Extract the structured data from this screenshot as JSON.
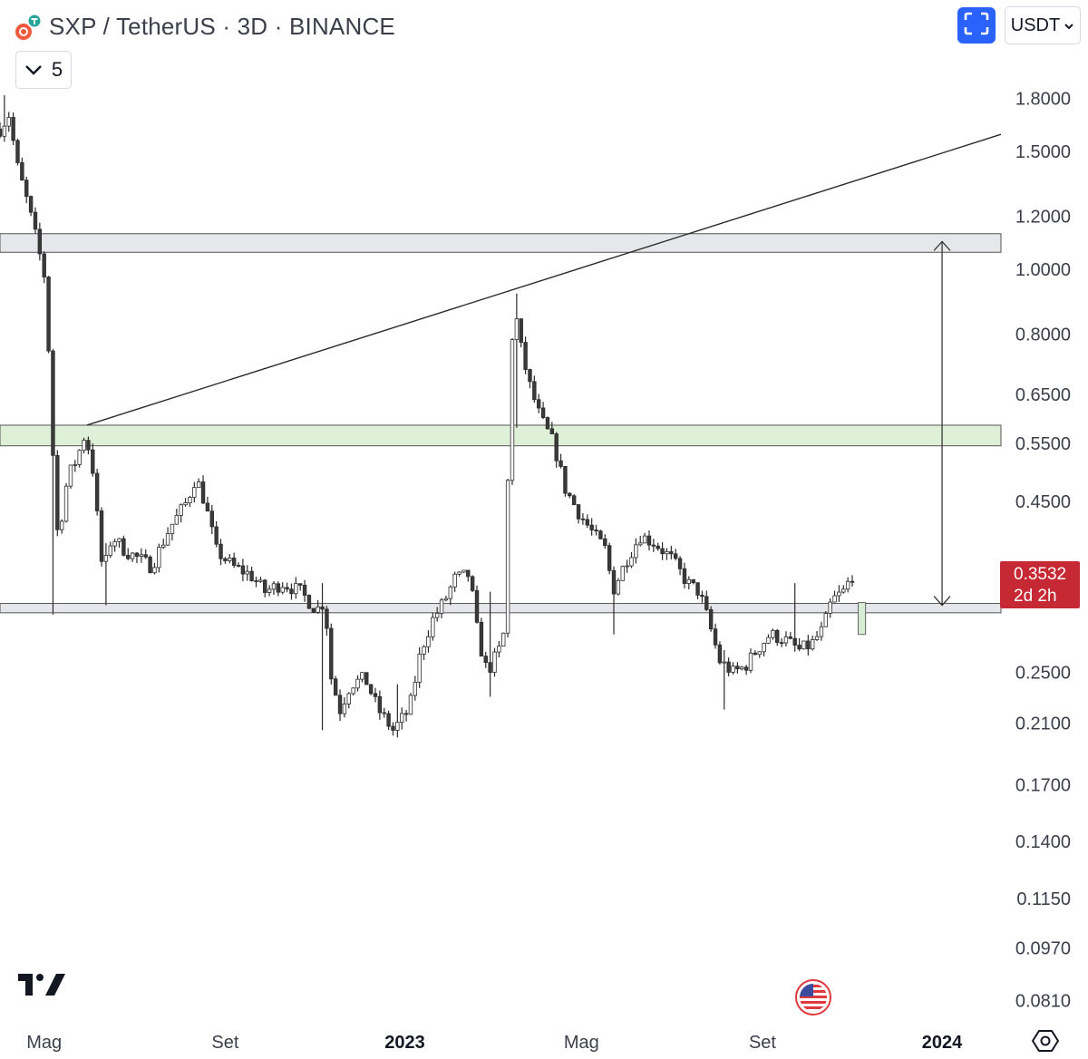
{
  "header": {
    "symbol": "SXP",
    "title": "SXP / TetherUS · 3D · BINANCE",
    "indicator_count": "5"
  },
  "toolbar": {
    "currency": "USDT"
  },
  "price_label": {
    "price": "0.3532",
    "countdown": "2d 2h"
  },
  "colors": {
    "up": "#26a69a",
    "down": "#ef5350",
    "candle_body_up": "#ffffff",
    "candle_body_down": "#3a3a3a",
    "price_tag": "#c62834",
    "accent": "#2962ff"
  },
  "icons": [
    "sxp-coin-icon",
    "chevron-down-icon",
    "fullscreen-icon",
    "tradingview-logo-icon",
    "us-flag-icon",
    "settings-icon"
  ],
  "chart_data": {
    "type": "candlestick",
    "title": "SXP / TetherUS · 3D · BINANCE",
    "y_scale": "log",
    "ylim": [
      0.075,
      2.2
    ],
    "xlim": [
      "2022-04-01",
      "2024-02-10"
    ],
    "y_ticks": [
      "1.8000",
      "1.5000",
      "1.2000",
      "1.0000",
      "0.8000",
      "0.6500",
      "0.5500",
      "0.4500",
      "0.2500",
      "0.2100",
      "0.1700",
      "0.1400",
      "0.1150",
      "0.0970",
      "0.0810"
    ],
    "x_ticks": [
      {
        "label": "Mag",
        "date": "2022-05-01",
        "bold": false
      },
      {
        "label": "Set",
        "date": "2022-09-01",
        "bold": false
      },
      {
        "label": "2023",
        "date": "2023-01-01",
        "bold": true
      },
      {
        "label": "Mag",
        "date": "2023-05-01",
        "bold": false
      },
      {
        "label": "Set",
        "date": "2023-09-01",
        "bold": false
      },
      {
        "label": "2024",
        "date": "2024-01-01",
        "bold": true
      }
    ],
    "close_path": [
      [
        "2022-04-01",
        1.62
      ],
      [
        "2022-04-07",
        1.7
      ],
      [
        "2022-04-13",
        1.42
      ],
      [
        "2022-04-20",
        1.25
      ],
      [
        "2022-04-26",
        1.1
      ],
      [
        "2022-05-01",
        0.98
      ],
      [
        "2022-05-05",
        0.7
      ],
      [
        "2022-05-09",
        0.4
      ],
      [
        "2022-05-13",
        0.43
      ],
      [
        "2022-05-17",
        0.49
      ],
      [
        "2022-05-23",
        0.52
      ],
      [
        "2022-05-29",
        0.57
      ],
      [
        "2022-06-04",
        0.49
      ],
      [
        "2022-06-07",
        0.4
      ],
      [
        "2022-06-10",
        0.35
      ],
      [
        "2022-06-16",
        0.4
      ],
      [
        "2022-06-25",
        0.38
      ],
      [
        "2022-07-04",
        0.37
      ],
      [
        "2022-07-13",
        0.36
      ],
      [
        "2022-07-25",
        0.41
      ],
      [
        "2022-08-06",
        0.45
      ],
      [
        "2022-08-12",
        0.49
      ],
      [
        "2022-08-18",
        0.45
      ],
      [
        "2022-08-26",
        0.38
      ],
      [
        "2022-09-06",
        0.36
      ],
      [
        "2022-09-18",
        0.35
      ],
      [
        "2022-09-28",
        0.33
      ],
      [
        "2022-10-10",
        0.34
      ],
      [
        "2022-10-22",
        0.33
      ],
      [
        "2022-11-02",
        0.31
      ],
      [
        "2022-11-08",
        0.32
      ],
      [
        "2022-11-11",
        0.25
      ],
      [
        "2022-11-18",
        0.22
      ],
      [
        "2022-11-25",
        0.24
      ],
      [
        "2022-12-05",
        0.245
      ],
      [
        "2022-12-14",
        0.22
      ],
      [
        "2022-12-24",
        0.205
      ],
      [
        "2023-01-04",
        0.22
      ],
      [
        "2023-01-12",
        0.27
      ],
      [
        "2023-01-20",
        0.3
      ],
      [
        "2023-01-28",
        0.32
      ],
      [
        "2023-02-04",
        0.345
      ],
      [
        "2023-02-14",
        0.35
      ],
      [
        "2023-02-20",
        0.28
      ],
      [
        "2023-02-26",
        0.25
      ],
      [
        "2023-03-06",
        0.27
      ],
      [
        "2023-03-10",
        0.29
      ],
      [
        "2023-03-13",
        0.62
      ],
      [
        "2023-03-16",
        0.9
      ],
      [
        "2023-03-20",
        0.78
      ],
      [
        "2023-03-26",
        0.68
      ],
      [
        "2023-04-03",
        0.6
      ],
      [
        "2023-04-12",
        0.55
      ],
      [
        "2023-04-20",
        0.47
      ],
      [
        "2023-04-30",
        0.43
      ],
      [
        "2023-05-10",
        0.4
      ],
      [
        "2023-05-18",
        0.38
      ],
      [
        "2023-05-22",
        0.33
      ],
      [
        "2023-06-01",
        0.37
      ],
      [
        "2023-06-10",
        0.4
      ],
      [
        "2023-06-20",
        0.39
      ],
      [
        "2023-07-01",
        0.37
      ],
      [
        "2023-07-12",
        0.34
      ],
      [
        "2023-07-20",
        0.33
      ],
      [
        "2023-07-26",
        0.3
      ],
      [
        "2023-08-03",
        0.26
      ],
      [
        "2023-08-12",
        0.25
      ],
      [
        "2023-08-20",
        0.255
      ],
      [
        "2023-08-28",
        0.27
      ],
      [
        "2023-09-06",
        0.285
      ],
      [
        "2023-09-16",
        0.28
      ],
      [
        "2023-09-26",
        0.27
      ],
      [
        "2023-10-04",
        0.275
      ],
      [
        "2023-10-12",
        0.29
      ],
      [
        "2023-10-18",
        0.32
      ],
      [
        "2023-10-26",
        0.33
      ],
      [
        "2023-11-02",
        0.3532
      ]
    ],
    "spikes": [
      {
        "date": "2022-04-04",
        "high": 1.82,
        "low": 1.55
      },
      {
        "date": "2022-05-08",
        "high": 0.42,
        "low": 0.305
      },
      {
        "date": "2022-06-13",
        "high": 0.39,
        "low": 0.315
      },
      {
        "date": "2022-11-05",
        "high": 0.34,
        "low": 0.205
      },
      {
        "date": "2022-12-28",
        "high": 0.24,
        "low": 0.2
      },
      {
        "date": "2023-03-01",
        "high": 0.33,
        "low": 0.23
      },
      {
        "date": "2023-03-17",
        "high": 0.92,
        "low": 0.58
      },
      {
        "date": "2023-05-24",
        "high": 0.36,
        "low": 0.285
      },
      {
        "date": "2023-08-06",
        "high": 0.27,
        "low": 0.22
      },
      {
        "date": "2023-09-24",
        "high": 0.34,
        "low": 0.27
      }
    ],
    "zones": [
      {
        "name": "resistance-zone",
        "y1": 1.06,
        "y2": 1.13,
        "fill": "#e6e7ea"
      },
      {
        "name": "support-zone-green",
        "y1": 0.545,
        "y2": 0.585,
        "fill": "#dff0d8"
      },
      {
        "name": "support-zone-grey",
        "y1": 0.307,
        "y2": 0.317,
        "fill": "#e6e7ea"
      }
    ],
    "trendline": {
      "x1": "2022-05-30",
      "y1": 0.585,
      "x2": "2024-02-10",
      "y2": 1.59
    },
    "arrow": {
      "x": "2024-01-01",
      "y_top": 1.1,
      "y_bottom": 0.315
    },
    "projected_box": {
      "x1": "2023-11-05",
      "x2": "2023-11-10",
      "y_top": 0.318,
      "y_bottom": 0.285
    }
  }
}
